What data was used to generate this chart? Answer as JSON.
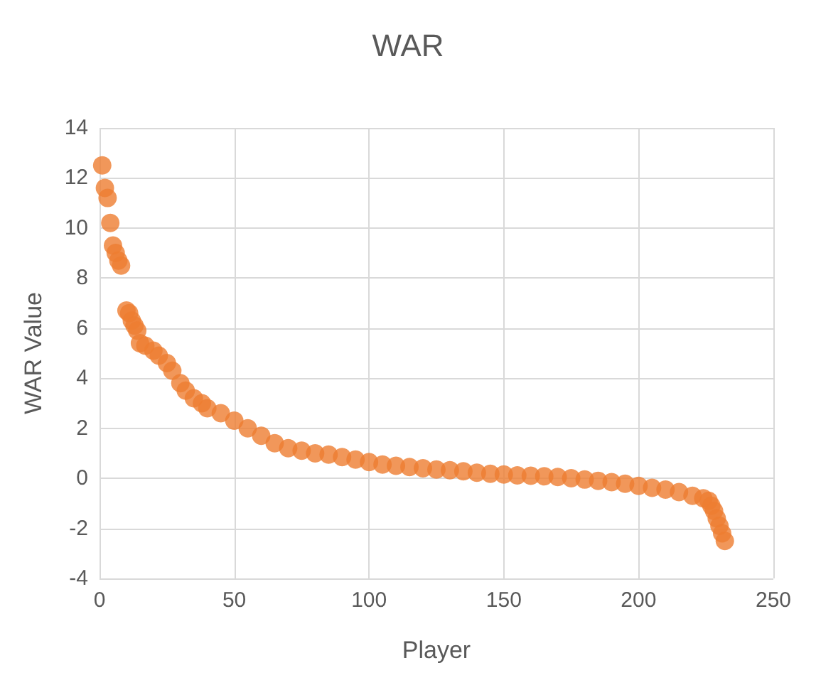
{
  "chart_data": {
    "type": "scatter",
    "title": "WAR",
    "xlabel": "Player",
    "ylabel": "WAR Value",
    "x": [
      1,
      2,
      3,
      4,
      5,
      6,
      7,
      8,
      10,
      11,
      12,
      13,
      14,
      15,
      17,
      20,
      22,
      25,
      27,
      30,
      32,
      35,
      38,
      40,
      45,
      50,
      55,
      60,
      65,
      70,
      75,
      80,
      85,
      90,
      95,
      100,
      105,
      110,
      115,
      120,
      125,
      130,
      135,
      140,
      145,
      150,
      155,
      160,
      165,
      170,
      175,
      180,
      185,
      190,
      195,
      200,
      205,
      210,
      215,
      220,
      224,
      226,
      227,
      228,
      229,
      230,
      231,
      232
    ],
    "values": [
      12.5,
      11.6,
      11.2,
      10.2,
      9.3,
      9.0,
      8.7,
      8.5,
      6.7,
      6.6,
      6.3,
      6.1,
      5.9,
      5.4,
      5.3,
      5.1,
      4.9,
      4.6,
      4.3,
      3.8,
      3.5,
      3.2,
      3.0,
      2.8,
      2.6,
      2.3,
      2.0,
      1.7,
      1.4,
      1.2,
      1.1,
      1.0,
      0.95,
      0.85,
      0.75,
      0.65,
      0.55,
      0.5,
      0.45,
      0.4,
      0.35,
      0.32,
      0.28,
      0.22,
      0.18,
      0.15,
      0.12,
      0.1,
      0.08,
      0.05,
      0.0,
      -0.05,
      -0.1,
      -0.15,
      -0.22,
      -0.3,
      -0.38,
      -0.45,
      -0.55,
      -0.7,
      -0.8,
      -0.9,
      -1.1,
      -1.3,
      -1.6,
      -1.9,
      -2.2,
      -2.5
    ],
    "color": "#ed7d31",
    "marker": "circle",
    "grid": true,
    "xlim": [
      0,
      250
    ],
    "xticks": [
      0,
      50,
      100,
      150,
      200,
      250
    ],
    "ylim": [
      -4,
      14
    ],
    "yticks": [
      -4,
      -2,
      0,
      2,
      4,
      6,
      8,
      10,
      12,
      14
    ]
  }
}
